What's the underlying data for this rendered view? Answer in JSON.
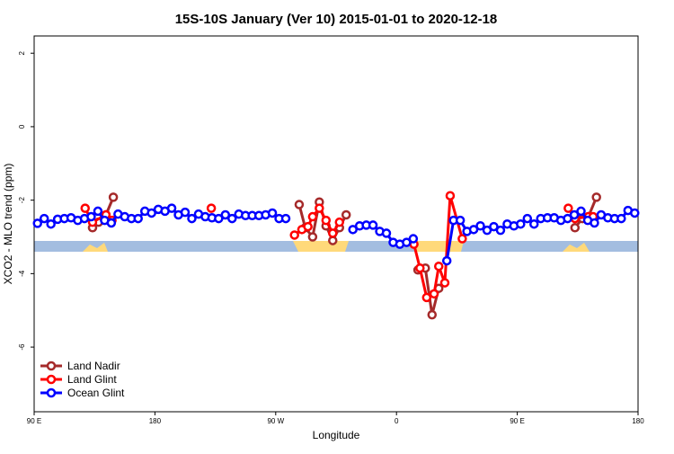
{
  "chart_data": {
    "type": "line",
    "title": "15S-10S January (Ver 10)   2015-01-01 to 2020-12-18",
    "x_label": "Longitude",
    "y_label": "XCO2 - MLO trend (ppm)",
    "xlim": [
      90,
      540
    ],
    "ylim": [
      -7.76,
      2.47
    ],
    "xticks": [
      {
        "value": 90,
        "label": "90 E"
      },
      180,
      {
        "value": 270,
        "label": "90 W"
      },
      {
        "value": 360,
        "label": "0"
      },
      {
        "value": 450,
        "label": "90 E"
      },
      {
        "value": 540,
        "label": "180"
      }
    ],
    "yticks": [
      2,
      0,
      -2,
      -4,
      -6
    ],
    "legend": "bottom-left",
    "series": [
      {
        "name": "Land Nadir",
        "color": "#a52a2a",
        "x": [
          133.5,
          138,
          143.5,
          149,
          null,
          287.5,
          292,
          297.5,
          302.5,
          307.5,
          312.5,
          317.5,
          322.5,
          null,
          376,
          381.5,
          386.5,
          391.5,
          null,
          493,
          498.5,
          503,
          509
        ],
        "values": [
          -2.75,
          -2.6,
          -2.4,
          -1.92,
          null,
          -2.12,
          -2.75,
          -3.0,
          -2.05,
          -2.7,
          -3.1,
          -2.75,
          -2.4,
          null,
          -3.9,
          -3.85,
          -5.12,
          -4.4,
          null,
          -2.75,
          -2.5,
          -2.45,
          -1.92
        ]
      },
      {
        "name": "Land Glint",
        "color": "#ff0000",
        "x": [
          128,
          133.5,
          143.5,
          148,
          null,
          222,
          null,
          284,
          289.5,
          294,
          297.5,
          302.5,
          307.5,
          312.5,
          317.5,
          null,
          373,
          377.5,
          382.5,
          388,
          391.5,
          396,
          400,
          409,
          null,
          488,
          493,
          503,
          506.5
        ],
        "values": [
          -2.22,
          -2.6,
          -2.4,
          -2.55,
          null,
          -2.22,
          null,
          -2.95,
          -2.8,
          -2.72,
          -2.45,
          -2.22,
          -2.55,
          -2.9,
          -2.6,
          null,
          -3.2,
          -3.85,
          -4.65,
          -4.55,
          -3.8,
          -4.25,
          -1.88,
          -3.05,
          null,
          -2.22,
          -2.5,
          -2.45,
          -2.45
        ]
      },
      {
        "name": "Ocean Glint",
        "color": "#0000ff",
        "x": [
          92.5,
          97.5,
          102.5,
          107.5,
          112.5,
          117.5,
          122.5,
          127.5,
          132.5,
          137.5,
          142.5,
          147.5,
          152.5,
          157.5,
          162.5,
          167.5,
          172.5,
          177.5,
          182.5,
          187.5,
          192.5,
          197.5,
          202.5,
          207.5,
          212.5,
          217.5,
          222.5,
          227.5,
          232.5,
          237.5,
          242.5,
          247.5,
          252.5,
          257.5,
          262.5,
          267.5,
          272.5,
          277.5,
          null,
          327.5,
          332.5,
          337.5,
          342.5,
          347.5,
          352.5,
          357.5,
          362.5,
          367.5,
          372.5,
          null,
          397.5,
          402.5,
          407.5,
          412.5,
          417.5,
          422.5,
          427.5,
          432.5,
          437.5,
          442.5,
          447.5,
          452.5,
          457.5,
          462.5,
          467.5,
          472.5,
          477.5,
          482.5,
          487.5,
          492.5,
          497.5,
          502.5,
          507.5,
          512.5,
          517.5,
          522.5,
          527.5,
          532.5,
          537.5
        ],
        "values": [
          -2.63,
          -2.5,
          -2.65,
          -2.52,
          -2.5,
          -2.48,
          -2.55,
          -2.5,
          -2.45,
          -2.3,
          -2.55,
          -2.62,
          -2.38,
          -2.45,
          -2.5,
          -2.5,
          -2.3,
          -2.35,
          -2.25,
          -2.3,
          -2.22,
          -2.4,
          -2.33,
          -2.5,
          -2.38,
          -2.45,
          -2.48,
          -2.5,
          -2.4,
          -2.5,
          -2.38,
          -2.42,
          -2.42,
          -2.42,
          -2.4,
          -2.35,
          -2.5,
          -2.5,
          null,
          -2.8,
          -2.7,
          -2.68,
          -2.68,
          -2.85,
          -2.9,
          -3.15,
          -3.2,
          -3.15,
          -3.05,
          null,
          -3.65,
          -2.55,
          -2.55,
          -2.85,
          -2.8,
          -2.7,
          -2.82,
          -2.72,
          -2.82,
          -2.65,
          -2.7,
          -2.65,
          -2.5,
          -2.65,
          -2.5,
          -2.48,
          -2.48,
          -2.55,
          -2.5,
          -2.4,
          -2.3,
          -2.55,
          -2.62,
          -2.4,
          -2.48,
          -2.5,
          -2.5,
          -2.28,
          -2.35
        ]
      }
    ]
  }
}
